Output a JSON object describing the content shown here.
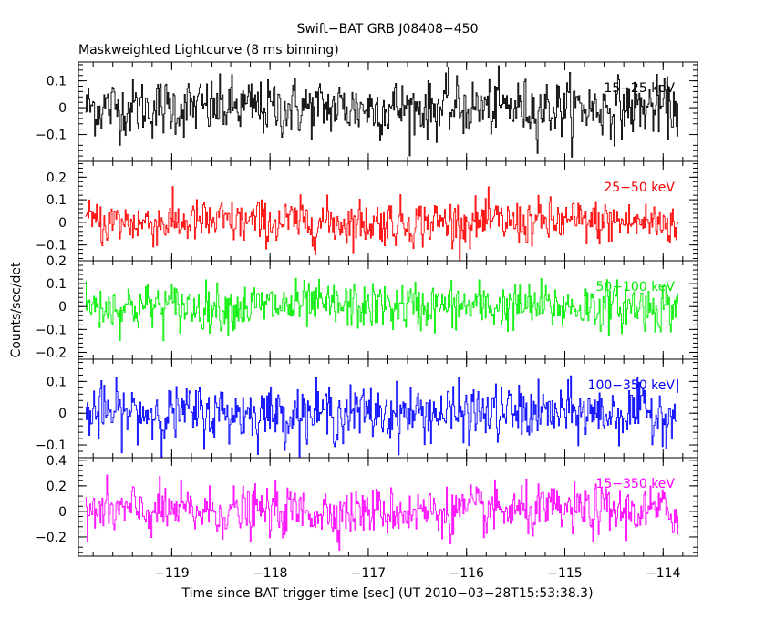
{
  "chart_data": {
    "type": "line",
    "title": "Swift−BAT GRB J08408−450",
    "subtitle": "Maskweighted Lightcurve (8 ms binning)",
    "xlabel": "Time since BAT trigger time [sec] (UT 2010−03−28T15:53:38.3)",
    "ylabel": "Counts/sec/det",
    "xlim": [
      -119.95,
      -113.65
    ],
    "x_ticks": [
      -119,
      -118,
      -117,
      -116,
      -115,
      -114
    ],
    "x_tick_labels": [
      "−119",
      "−118",
      "−117",
      "−116",
      "−115",
      "−114"
    ],
    "data_x_range": [
      -119.88,
      -113.85
    ],
    "bin_seconds": 0.008,
    "panels": [
      {
        "band": "15−25 keV",
        "color": "#000000",
        "ylim": [
          -0.2,
          0.17
        ],
        "noise_sigma": 0.062,
        "yticks": [
          -0.1,
          0,
          0.1
        ],
        "ytick_labels": [
          "−0.1",
          "0",
          "0.1"
        ]
      },
      {
        "band": "25−50 keV",
        "color": "#ff0000",
        "ylim": [
          -0.17,
          0.27
        ],
        "noise_sigma": 0.058,
        "yticks": [
          -0.1,
          0,
          0.1,
          0.2
        ],
        "ytick_labels": [
          "−0.1",
          "0",
          "0.1",
          "0.2"
        ]
      },
      {
        "band": "50−100 keV",
        "color": "#00ee00",
        "ylim": [
          -0.23,
          0.2
        ],
        "noise_sigma": 0.06,
        "yticks": [
          -0.2,
          -0.1,
          0,
          0.1,
          0.2
        ],
        "ytick_labels": [
          "−0.2",
          "−0.1",
          "0",
          "0.1",
          "0.2"
        ]
      },
      {
        "band": "100−350 keV",
        "color": "#0000ff",
        "ylim": [
          -0.14,
          0.17
        ],
        "noise_sigma": 0.05,
        "yticks": [
          -0.1,
          0,
          0.1
        ],
        "ytick_labels": [
          "−0.1",
          "0",
          "0.1"
        ]
      },
      {
        "band": "15−350 keV",
        "color": "#ff00ff",
        "ylim": [
          -0.35,
          0.42
        ],
        "noise_sigma": 0.11,
        "yticks": [
          -0.2,
          0,
          0.2,
          0.4
        ],
        "ytick_labels": [
          "−0.2",
          "0",
          "0.2",
          "0.4"
        ]
      }
    ]
  }
}
